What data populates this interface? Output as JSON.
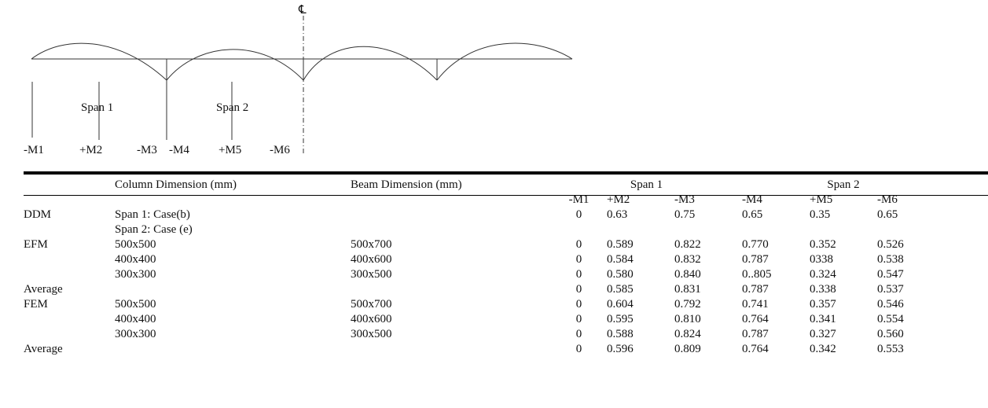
{
  "diagram": {
    "centerline_label": "℄",
    "span1_label": "Span 1",
    "span2_label": "Span 2",
    "moment_labels": [
      "-M1",
      "+M2",
      "-M3",
      "-M4",
      "+M5",
      "-M6"
    ]
  },
  "table": {
    "headers": {
      "column_dimension": "Column Dimension (mm)",
      "beam_dimension": "Beam Dimension (mm)",
      "span1": "Span 1",
      "span2": "Span 2",
      "moments": [
        "-M1",
        "+M2",
        "-M3",
        "-M4",
        "+M5",
        "-M6"
      ]
    },
    "rows": [
      {
        "method": "DDM",
        "column": "Span 1: Case(b)",
        "beam": "",
        "values": [
          "0",
          "0.63",
          "0.75",
          "0.65",
          "0.35",
          "0.65"
        ]
      },
      {
        "method": "",
        "column": "Span 2: Case (e)",
        "beam": "",
        "values": [
          "",
          "",
          "",
          "",
          "",
          ""
        ]
      },
      {
        "method": "EFM",
        "column": "500x500",
        "beam": "500x700",
        "values": [
          "0",
          "0.589",
          "0.822",
          "0.770",
          "0.352",
          "0.526"
        ]
      },
      {
        "method": "",
        "column": "400x400",
        "beam": "400x600",
        "values": [
          "0",
          "0.584",
          "0.832",
          "0.787",
          "0338",
          "0.538"
        ]
      },
      {
        "method": "",
        "column": "300x300",
        "beam": "300x500",
        "values": [
          "0",
          "0.580",
          "0.840",
          "0..805",
          "0.324",
          "0.547"
        ]
      },
      {
        "method": "Average",
        "column": "",
        "beam": "",
        "values": [
          "0",
          "0.585",
          "0.831",
          "0.787",
          "0.338",
          "0.537"
        ]
      },
      {
        "method": "FEM",
        "column": "500x500",
        "beam": "500x700",
        "values": [
          "0",
          "0.604",
          "0.792",
          "0.741",
          "0.357",
          "0.546"
        ]
      },
      {
        "method": "",
        "column": "400x400",
        "beam": "400x600",
        "values": [
          "0",
          "0.595",
          "0.810",
          "0.764",
          "0.341",
          "0.554"
        ]
      },
      {
        "method": "",
        "column": "300x300",
        "beam": "300x500",
        "values": [
          "0",
          "0.588",
          "0.824",
          "0.787",
          "0.327",
          "0.560"
        ]
      },
      {
        "method": "Average",
        "column": "",
        "beam": "",
        "values": [
          "0",
          "0.596",
          "0.809",
          "0.764",
          "0.342",
          "0.553"
        ]
      }
    ]
  }
}
